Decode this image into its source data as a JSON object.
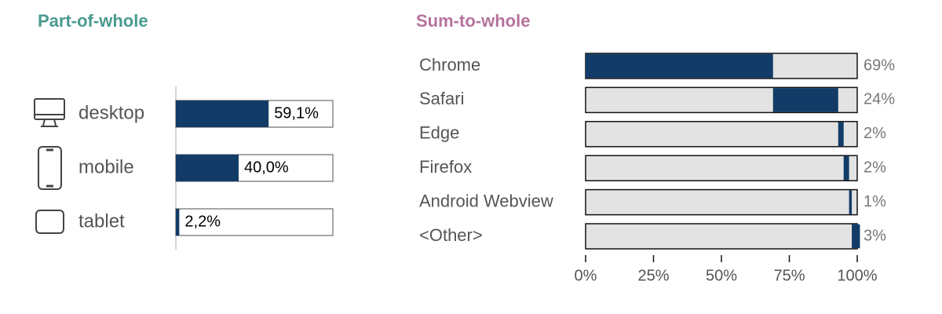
{
  "chart_data": [
    {
      "type": "bar",
      "title": "Part-of-whole",
      "categories": [
        "desktop",
        "mobile",
        "tablet"
      ],
      "values": [
        59.1,
        40.0,
        2.2
      ],
      "value_labels": [
        "59,1%",
        "40,0%",
        "2,2%"
      ],
      "xlim": [
        0,
        100
      ],
      "color": "#123c67"
    },
    {
      "type": "waterfall",
      "title": "Sum-to-whole",
      "categories": [
        "Chrome",
        "Safari",
        "Edge",
        "Firefox",
        "Android Webview",
        "<Other>"
      ],
      "values": [
        69,
        24,
        2,
        2,
        1,
        3
      ],
      "value_labels": [
        "69%",
        "24%",
        "2%",
        "2%",
        "1%",
        "3%"
      ],
      "xlim": [
        0,
        100
      ],
      "xticks": [
        {
          "value": 0,
          "label": "0%"
        },
        {
          "value": 25,
          "label": "25%"
        },
        {
          "value": 50,
          "label": "50%"
        },
        {
          "value": 75,
          "label": "75%"
        },
        {
          "value": 100,
          "label": "100%"
        }
      ],
      "color": "#123c67"
    }
  ]
}
